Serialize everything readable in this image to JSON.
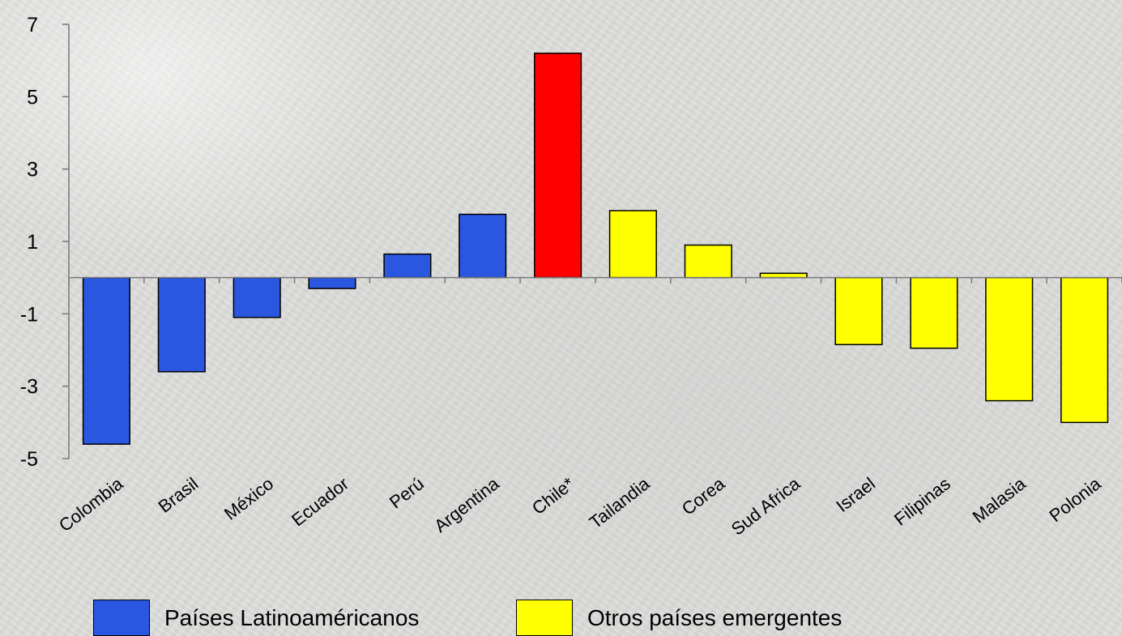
{
  "chart_data": {
    "type": "bar",
    "categories": [
      "Colombia",
      "Brasil",
      "México",
      "Ecuador",
      "Perú",
      "Argentina",
      "Chile*",
      "Tailandia",
      "Corea",
      "Sud Africa",
      "Israel",
      "Filipinas",
      "Malasia",
      "Polonia"
    ],
    "values": [
      -4.6,
      -2.6,
      -1.1,
      -0.3,
      0.65,
      1.75,
      6.2,
      1.85,
      0.9,
      0.12,
      -1.85,
      -1.95,
      -3.4,
      -4.0
    ],
    "groups": [
      "latam",
      "latam",
      "latam",
      "latam",
      "latam",
      "latam",
      "chile",
      "other",
      "other",
      "other",
      "other",
      "other",
      "other",
      "other"
    ],
    "ylim": [
      -5,
      7
    ],
    "yticks": [
      7,
      5,
      3,
      1,
      -1,
      -3,
      -5
    ],
    "title": "",
    "xlabel": "",
    "ylabel": "",
    "grid": false,
    "legend_position": "bottom",
    "legend": [
      {
        "key": "latam",
        "label": "Países Latinoaméricanos",
        "color": "#2a56e0"
      },
      {
        "key": "other",
        "label": "Otros países emergentes",
        "color": "#ffff00"
      }
    ],
    "colors": {
      "latam": "#2a56e0",
      "chile": "#ff0000",
      "other": "#ffff00",
      "axis": "#777777"
    }
  }
}
